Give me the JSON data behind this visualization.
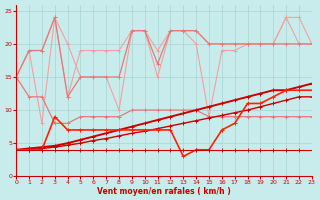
{
  "x": [
    0,
    1,
    2,
    3,
    4,
    5,
    6,
    7,
    8,
    9,
    10,
    11,
    12,
    13,
    14,
    15,
    16,
    17,
    18,
    19,
    20,
    21,
    22,
    23
  ],
  "line_pink1": [
    15,
    19,
    19,
    24,
    12,
    19,
    19,
    19,
    19,
    22,
    22,
    19,
    22,
    22,
    22,
    20,
    20,
    20,
    20,
    20,
    20,
    24,
    24,
    20
  ],
  "line_pink2": [
    15,
    19,
    8,
    24,
    20,
    15,
    15,
    15,
    10,
    22,
    22,
    15,
    22,
    22,
    20,
    9,
    19,
    19,
    20,
    20,
    20,
    24,
    20,
    20
  ],
  "line_salmon1": [
    15,
    19,
    19,
    24,
    12,
    15,
    15,
    15,
    15,
    22,
    22,
    17,
    22,
    22,
    22,
    20,
    20,
    20,
    20,
    20,
    20,
    20,
    20,
    20
  ],
  "line_salmon2": [
    15,
    12,
    12,
    8,
    8,
    9,
    9,
    9,
    9,
    10,
    10,
    10,
    10,
    10,
    10,
    9,
    9,
    9,
    9,
    9,
    9,
    9,
    9,
    9
  ],
  "line_dark_upper": [
    4,
    4.2,
    4.4,
    4.6,
    5,
    5.5,
    6,
    6.5,
    7,
    7.5,
    8,
    8.5,
    9,
    9.5,
    10,
    10.5,
    11,
    11.5,
    12,
    12.5,
    13,
    13,
    13.5,
    14
  ],
  "line_dark_mid": [
    4,
    4,
    4.2,
    4.4,
    4.7,
    5.0,
    5.4,
    5.7,
    6.1,
    6.5,
    6.8,
    7.2,
    7.6,
    8.0,
    8.4,
    8.8,
    9.2,
    9.6,
    10,
    10.5,
    11,
    11.5,
    12,
    12
  ],
  "line_red_vary": [
    4,
    4,
    4,
    9,
    7,
    7,
    7,
    7,
    7,
    7,
    7,
    7,
    7,
    3,
    4,
    4,
    7,
    8,
    11,
    11,
    12,
    13,
    13,
    13
  ],
  "line_red_flat": [
    4,
    4,
    4,
    4,
    4,
    4,
    4,
    4,
    4,
    4,
    4,
    4,
    4,
    4,
    4,
    4,
    4,
    4,
    4,
    4,
    4,
    4,
    4,
    4
  ],
  "color_pink": "#f4a0a0",
  "color_salmon": "#e87878",
  "color_dark": "#cc0000",
  "color_bright": "#ff2200",
  "bg_color": "#c8ecec",
  "grid_color": "#a8d4d4",
  "xlabel": "Vent moyen/en rafales ( km/h )",
  "xlim": [
    0,
    23
  ],
  "ylim": [
    0,
    26
  ],
  "yticks": [
    0,
    5,
    10,
    15,
    20,
    25
  ],
  "xticks": [
    0,
    1,
    2,
    3,
    4,
    5,
    6,
    7,
    8,
    9,
    10,
    11,
    12,
    13,
    14,
    15,
    16,
    17,
    18,
    19,
    20,
    21,
    22,
    23
  ]
}
